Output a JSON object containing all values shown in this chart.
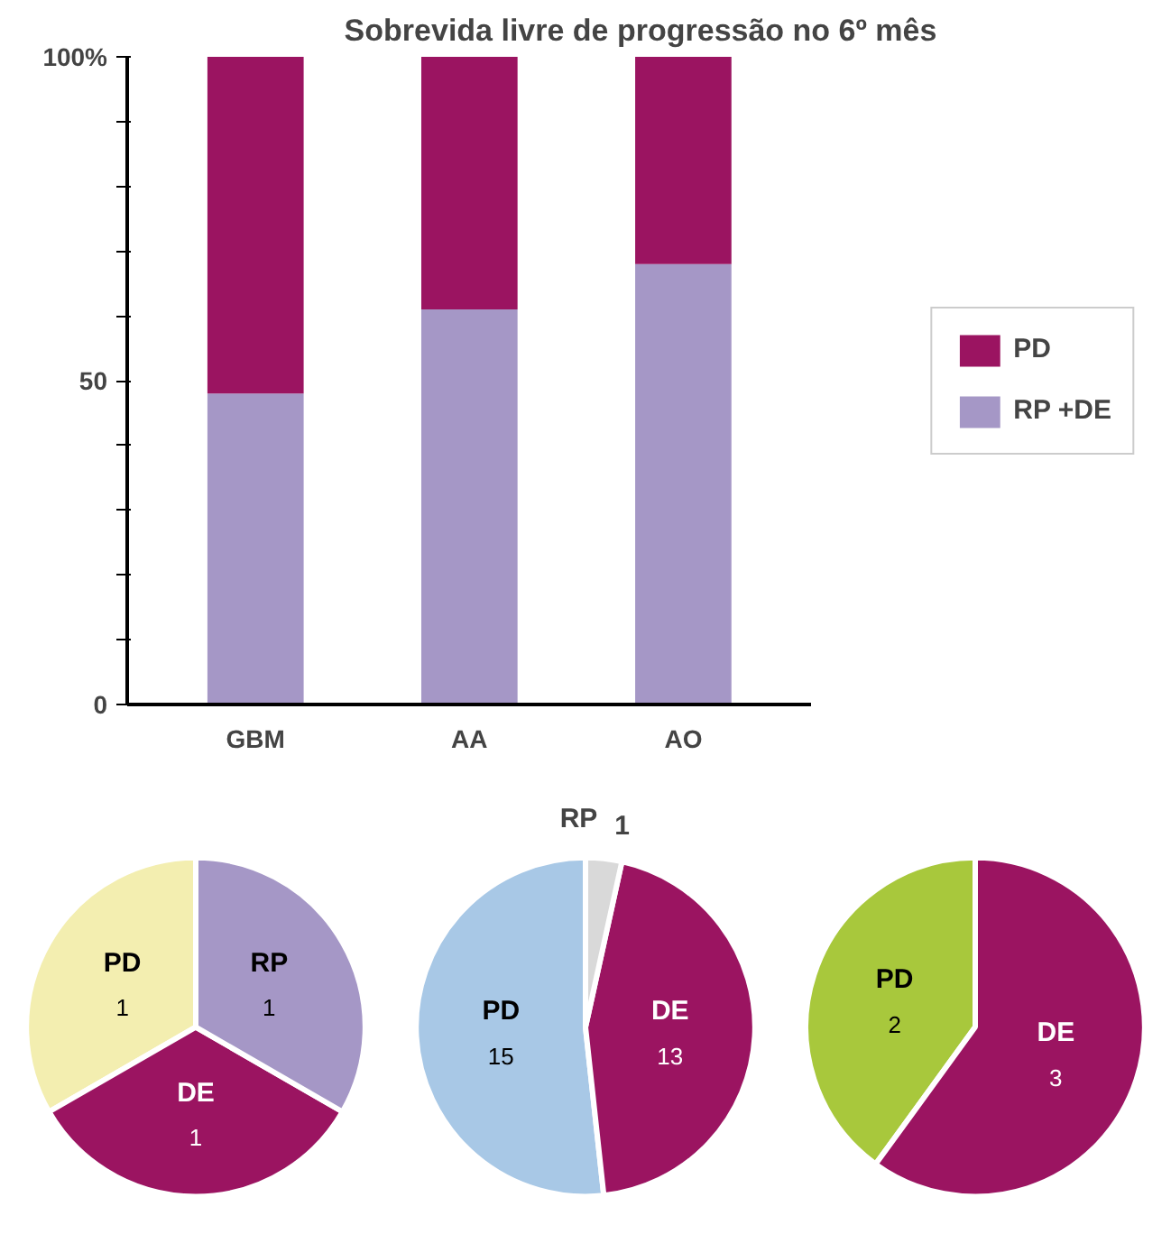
{
  "chart_data": [
    {
      "type": "bar",
      "title": "Sobrevida livre de progressão no 6º mês",
      "categories": [
        "GBM",
        "AA",
        "AO"
      ],
      "stacked": true,
      "legend": "right",
      "grid": false,
      "ylim": [
        0,
        100
      ],
      "yticks": [
        0,
        {
          "value": 10,
          "label": null
        },
        {
          "value": 20,
          "label": null
        },
        {
          "value": 30,
          "label": null
        },
        {
          "value": 40,
          "label": null
        },
        50,
        {
          "value": 60,
          "label": null
        },
        {
          "value": 70,
          "label": null
        },
        {
          "value": 80,
          "label": null
        },
        {
          "value": 90,
          "label": null
        },
        {
          "value": 100,
          "label": "100%"
        }
      ],
      "series": [
        {
          "name": "RP +DE",
          "color": "#a597c6",
          "values": [
            48,
            61,
            68
          ]
        },
        {
          "name": "PD",
          "color": "#9b1461",
          "values": [
            52,
            39,
            32
          ]
        }
      ]
    },
    {
      "type": "pie",
      "categories": [
        "PD",
        "DE",
        "RP"
      ],
      "values": [
        1,
        1,
        1
      ],
      "colors": [
        "#f3eeb0",
        "#9b1461",
        "#a597c6"
      ],
      "data_labels": true
    },
    {
      "type": "pie",
      "categories": [
        "PD",
        "DE",
        "RP"
      ],
      "values": [
        15,
        13,
        1
      ],
      "colors": [
        "#a8c8e6",
        "#9b1461",
        "#d9d9d9"
      ],
      "data_labels": true
    },
    {
      "type": "pie",
      "categories": [
        "PD",
        "DE"
      ],
      "values": [
        2,
        3
      ],
      "colors": [
        "#a8c83c",
        "#9b1461"
      ],
      "data_labels": true
    }
  ]
}
